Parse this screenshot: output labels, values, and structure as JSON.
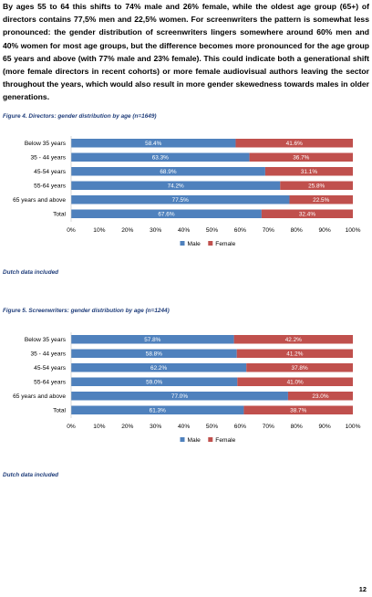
{
  "intro_text": "By ages 55 to 64 this shifts to 74% male and 26% female, while the oldest age group (65+) of directors contains 77,5% men and 22,5% women. For screenwriters the pattern is somewhat less pronounced: the gender distribution of screenwriters lingers somewhere around 60% men and 40% women for most age groups, but the difference becomes more pronounced for the age group 65 years and above (with 77% male and 23% female). This could indicate both a generational shift (more female directors in recent cohorts) or more female audiovisual authors leaving the sector throughout the years, which would also result in more gender skewedness towards males in older generations.",
  "page_number": "12",
  "colors": {
    "male": "#4f81bd",
    "female": "#c0504d"
  },
  "chart_data": [
    {
      "type": "bar",
      "orientation": "horizontal",
      "stacked": true,
      "title": "Figure 4. Directors: gender distribution by age (n=1649)",
      "categories": [
        "Below 35 years",
        "35 - 44 years",
        "45-54 years",
        "55-64 years",
        "65 years and above",
        "Total"
      ],
      "series": [
        {
          "name": "Male",
          "values": [
            58.4,
            63.3,
            68.9,
            74.2,
            77.5,
            67.6
          ],
          "labels": [
            "58.4%",
            "63.3%",
            "68.9%",
            "74.2%",
            "77.5%",
            "67.6%"
          ]
        },
        {
          "name": "Female",
          "values": [
            41.6,
            36.7,
            31.1,
            25.8,
            22.5,
            32.4
          ],
          "labels": [
            "41.6%",
            "36.7%",
            "31.1%",
            "25.8%",
            "22.5%",
            "32.4%"
          ]
        }
      ],
      "xlim": [
        0,
        100
      ],
      "xticks": [
        "0%",
        "10%",
        "20%",
        "30%",
        "40%",
        "50%",
        "60%",
        "70%",
        "80%",
        "90%",
        "100%"
      ],
      "legend": "bottom",
      "grid": false,
      "note": "Dutch data  included"
    },
    {
      "type": "bar",
      "orientation": "horizontal",
      "stacked": true,
      "title": "Figure 5. Screenwriters: gender distribution by age (n=1244)",
      "categories": [
        "Below 35 years",
        "35 - 44 years",
        "45-54 years",
        "55-64 years",
        "65 years and above",
        "Total"
      ],
      "series": [
        {
          "name": "Male",
          "values": [
            57.8,
            58.8,
            62.2,
            59.0,
            77.0,
            61.3
          ],
          "labels": [
            "57.8%",
            "58.8%",
            "62.2%",
            "59.0%",
            "77.0%",
            "61.3%"
          ]
        },
        {
          "name": "Female",
          "values": [
            42.2,
            41.2,
            37.8,
            41.0,
            23.0,
            38.7
          ],
          "labels": [
            "42.2%",
            "41.2%",
            "37.8%",
            "41.0%",
            "23.0%",
            "38.7%"
          ]
        }
      ],
      "xlim": [
        0,
        100
      ],
      "xticks": [
        "0%",
        "10%",
        "20%",
        "30%",
        "40%",
        "50%",
        "60%",
        "70%",
        "80%",
        "90%",
        "100%"
      ],
      "legend": "bottom",
      "grid": false,
      "note": "Dutch data included"
    }
  ]
}
